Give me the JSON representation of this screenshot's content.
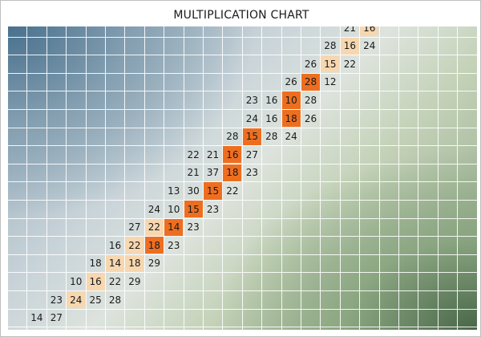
{
  "title": "MULTIPLICATION CHART",
  "colors": {
    "highlight_dark": "#ee6e20",
    "highlight_light": "#f6d7b0",
    "grid_line": "#ffffff",
    "top_left_tint": "#466e8c",
    "bottom_right_tint": "#466446"
  },
  "rows": [
    {
      "row": 0,
      "values": [
        {
          "col": 17,
          "text": "21"
        },
        {
          "col": 18,
          "text": "16",
          "hl": "light"
        }
      ]
    },
    {
      "row": 1,
      "values": [
        {
          "col": 16,
          "text": "28"
        },
        {
          "col": 17,
          "text": "16",
          "hl": "light"
        },
        {
          "col": 18,
          "text": "24"
        }
      ]
    },
    {
      "row": 2,
      "values": [
        {
          "col": 15,
          "text": "26"
        },
        {
          "col": 16,
          "text": "15",
          "hl": "light"
        },
        {
          "col": 17,
          "text": "22"
        }
      ]
    },
    {
      "row": 3,
      "values": [
        {
          "col": 14,
          "text": "26"
        },
        {
          "col": 15,
          "text": "28",
          "hl": "dark"
        },
        {
          "col": 16,
          "text": "12"
        }
      ]
    },
    {
      "row": 4,
      "values": [
        {
          "col": 12,
          "text": "23"
        },
        {
          "col": 13,
          "text": "16"
        },
        {
          "col": 14,
          "text": "10",
          "hl": "dark"
        },
        {
          "col": 15,
          "text": "28"
        }
      ]
    },
    {
      "row": 5,
      "values": [
        {
          "col": 12,
          "text": "24"
        },
        {
          "col": 13,
          "text": "16"
        },
        {
          "col": 14,
          "text": "18",
          "hl": "dark"
        },
        {
          "col": 15,
          "text": "26"
        }
      ]
    },
    {
      "row": 6,
      "values": [
        {
          "col": 11,
          "text": "28"
        },
        {
          "col": 12,
          "text": "15",
          "hl": "dark"
        },
        {
          "col": 13,
          "text": "28"
        },
        {
          "col": 14,
          "text": "24"
        }
      ]
    },
    {
      "row": 7,
      "values": [
        {
          "col": 9,
          "text": "22"
        },
        {
          "col": 10,
          "text": "21"
        },
        {
          "col": 11,
          "text": "16",
          "hl": "dark"
        },
        {
          "col": 12,
          "text": "27"
        }
      ]
    },
    {
      "row": 8,
      "values": [
        {
          "col": 9,
          "text": "21"
        },
        {
          "col": 10,
          "text": "37"
        },
        {
          "col": 11,
          "text": "18",
          "hl": "dark"
        },
        {
          "col": 12,
          "text": "23"
        }
      ]
    },
    {
      "row": 9,
      "values": [
        {
          "col": 8,
          "text": "13"
        },
        {
          "col": 9,
          "text": "30"
        },
        {
          "col": 10,
          "text": "15",
          "hl": "dark"
        },
        {
          "col": 11,
          "text": "22"
        }
      ]
    },
    {
      "row": 10,
      "values": [
        {
          "col": 7,
          "text": "24"
        },
        {
          "col": 8,
          "text": "10"
        },
        {
          "col": 9,
          "text": "15",
          "hl": "dark"
        },
        {
          "col": 10,
          "text": "23"
        }
      ]
    },
    {
      "row": 11,
      "values": [
        {
          "col": 6,
          "text": "27"
        },
        {
          "col": 7,
          "text": "22",
          "hl": "light"
        },
        {
          "col": 8,
          "text": "14",
          "hl": "dark"
        },
        {
          "col": 9,
          "text": "23"
        }
      ]
    },
    {
      "row": 12,
      "values": [
        {
          "col": 5,
          "text": "16"
        },
        {
          "col": 6,
          "text": "22",
          "hl": "light"
        },
        {
          "col": 7,
          "text": "18",
          "hl": "dark"
        },
        {
          "col": 8,
          "text": "23"
        }
      ]
    },
    {
      "row": 13,
      "values": [
        {
          "col": 4,
          "text": "18"
        },
        {
          "col": 5,
          "text": "14",
          "hl": "light"
        },
        {
          "col": 6,
          "text": "18",
          "hl": "light"
        },
        {
          "col": 7,
          "text": "29"
        }
      ]
    },
    {
      "row": 14,
      "values": [
        {
          "col": 3,
          "text": "10"
        },
        {
          "col": 4,
          "text": "16",
          "hl": "light"
        },
        {
          "col": 5,
          "text": "22"
        },
        {
          "col": 6,
          "text": "29"
        }
      ]
    },
    {
      "row": 15,
      "values": [
        {
          "col": 2,
          "text": "23"
        },
        {
          "col": 3,
          "text": "24",
          "hl": "light"
        },
        {
          "col": 4,
          "text": "25"
        },
        {
          "col": 5,
          "text": "28"
        }
      ]
    },
    {
      "row": 16,
      "values": [
        {
          "col": 1,
          "text": "14"
        },
        {
          "col": 2,
          "text": "27"
        }
      ]
    }
  ]
}
